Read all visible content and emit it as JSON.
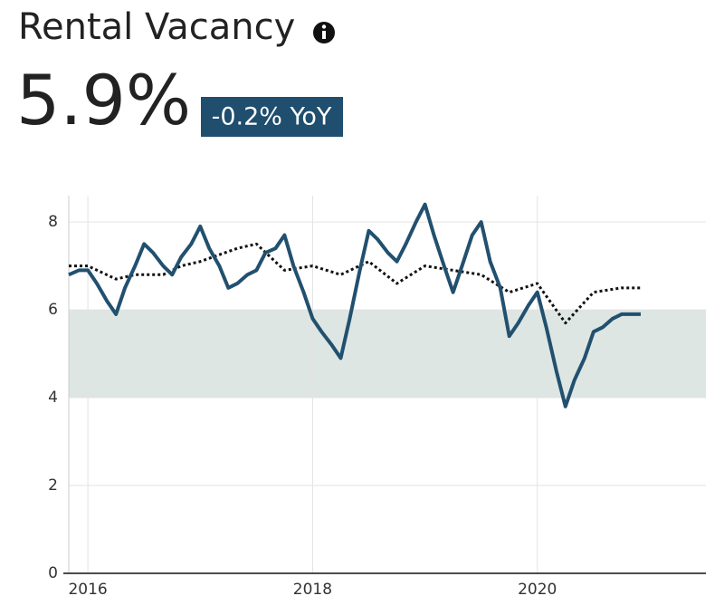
{
  "chart_data": {
    "type": "line",
    "title": "Rental Vacancy",
    "headline_value": "5.9%",
    "change_label": "-0.2% YoY",
    "xlim": [
      2015.83,
      2021.5
    ],
    "xticks": [
      2016,
      2018,
      2020
    ],
    "ylim": [
      0,
      8.6
    ],
    "yticks": [
      0,
      2,
      4,
      6,
      8
    ],
    "grid": true,
    "band": [
      4,
      6
    ],
    "band_color": "#dde6e2",
    "series": [
      {
        "color": "#22506f",
        "style": "solid",
        "x": [
          2015.83,
          2015.92,
          2016.0,
          2016.08,
          2016.17,
          2016.25,
          2016.33,
          2016.42,
          2016.5,
          2016.58,
          2016.67,
          2016.75,
          2016.83,
          2016.92,
          2017.0,
          2017.08,
          2017.17,
          2017.25,
          2017.33,
          2017.42,
          2017.5,
          2017.58,
          2017.67,
          2017.75,
          2017.83,
          2017.92,
          2018.0,
          2018.08,
          2018.17,
          2018.25,
          2018.33,
          2018.42,
          2018.5,
          2018.58,
          2018.67,
          2018.75,
          2018.83,
          2018.92,
          2019.0,
          2019.08,
          2019.17,
          2019.25,
          2019.33,
          2019.42,
          2019.5,
          2019.58,
          2019.67,
          2019.75,
          2019.83,
          2019.92,
          2020.0,
          2020.08,
          2020.17,
          2020.25,
          2020.33,
          2020.42,
          2020.5,
          2020.58,
          2020.67,
          2020.75,
          2020.83,
          2020.92
        ],
        "values": [
          6.8,
          6.9,
          6.9,
          6.6,
          6.2,
          5.9,
          6.5,
          7.0,
          7.5,
          7.3,
          7.0,
          6.8,
          7.2,
          7.5,
          7.9,
          7.4,
          7.0,
          6.5,
          6.6,
          6.8,
          6.9,
          7.3,
          7.4,
          7.7,
          7.0,
          6.4,
          5.8,
          5.5,
          5.2,
          4.9,
          5.8,
          6.9,
          7.8,
          7.6,
          7.3,
          7.1,
          7.5,
          8.0,
          8.4,
          7.7,
          7.0,
          6.4,
          7.0,
          7.7,
          8.0,
          7.1,
          6.5,
          5.4,
          5.7,
          6.1,
          6.4,
          5.6,
          4.6,
          3.8,
          4.4,
          4.9,
          5.5,
          5.6,
          5.8,
          5.9,
          5.9,
          5.9
        ]
      },
      {
        "color": "#111111",
        "style": "dotted",
        "x": [
          2015.83,
          2016.0,
          2016.25,
          2016.42,
          2016.67,
          2016.83,
          2017.0,
          2017.33,
          2017.5,
          2017.75,
          2018.0,
          2018.25,
          2018.5,
          2018.75,
          2019.0,
          2019.25,
          2019.5,
          2019.75,
          2020.0,
          2020.25,
          2020.5,
          2020.75,
          2020.92
        ],
        "values": [
          7.0,
          7.0,
          6.7,
          6.8,
          6.8,
          7.0,
          7.1,
          7.4,
          7.5,
          6.9,
          7.0,
          6.8,
          7.1,
          6.6,
          7.0,
          6.9,
          6.8,
          6.4,
          6.6,
          5.7,
          6.4,
          6.5,
          6.5
        ]
      }
    ]
  }
}
